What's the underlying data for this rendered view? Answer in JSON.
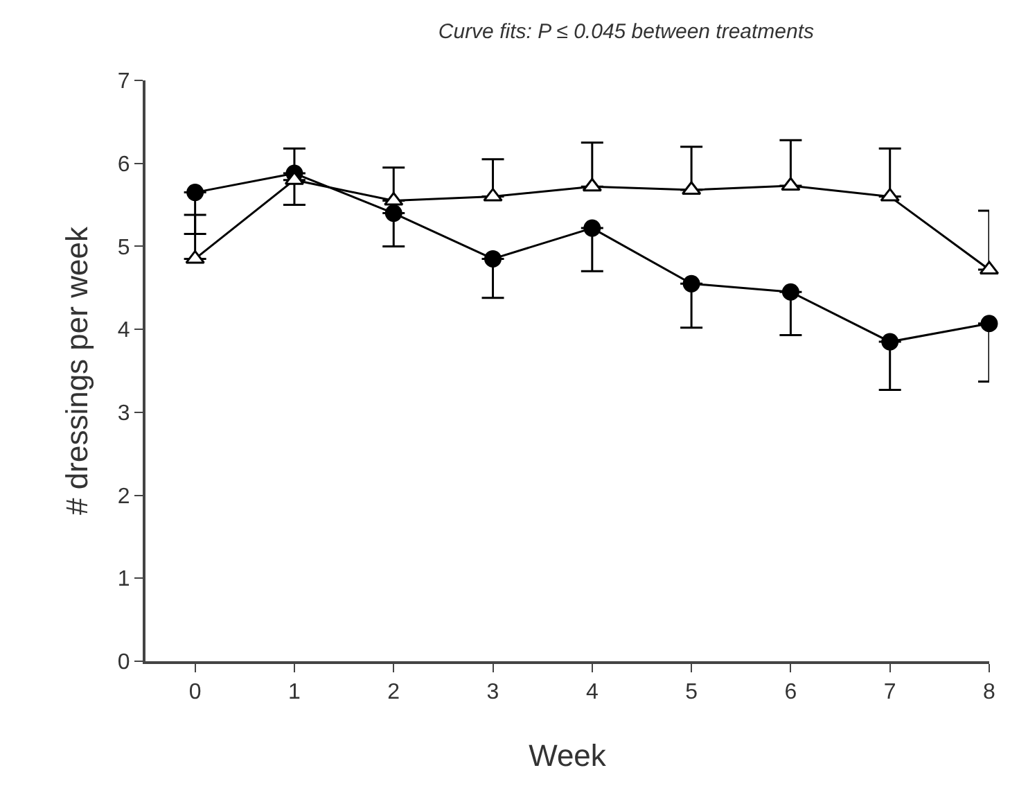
{
  "chart_data": {
    "type": "line",
    "title": "Curve fits: P ≤ 0.045 between treatments",
    "xlabel": "Week",
    "ylabel": "# dressings per week",
    "x": [
      0,
      1,
      2,
      3,
      4,
      5,
      6,
      7,
      8
    ],
    "series": [
      {
        "color": "#000000",
        "marker": "circle",
        "values": [
          5.65,
          5.88,
          5.4,
          4.85,
          5.22,
          4.55,
          4.45,
          3.85,
          4.07
        ],
        "errors": [
          [
            5.15,
            5.65
          ],
          [
            5.88,
            6.18
          ],
          [
            5.0,
            5.4
          ],
          [
            4.38,
            4.85
          ],
          [
            4.7,
            5.22
          ],
          [
            4.02,
            4.55
          ],
          [
            3.93,
            4.45
          ],
          [
            3.27,
            3.85
          ],
          [
            3.37,
            4.07
          ]
        ]
      },
      {
        "color": "#000000",
        "marker": "triangle",
        "values": [
          4.85,
          5.8,
          5.55,
          5.6,
          5.72,
          5.68,
          5.73,
          5.6,
          4.72
        ],
        "errors": [
          [
            4.85,
            5.38
          ],
          [
            5.5,
            5.8
          ],
          [
            5.55,
            5.95
          ],
          [
            5.6,
            6.05
          ],
          [
            5.72,
            6.25
          ],
          [
            5.68,
            6.2
          ],
          [
            5.73,
            6.28
          ],
          [
            5.6,
            6.18
          ],
          [
            4.72,
            5.43
          ]
        ]
      }
    ],
    "xlim": [
      -0.5,
      8
    ],
    "xticks": [
      0,
      1,
      2,
      3,
      4,
      5,
      6,
      7,
      8
    ],
    "ylim": [
      0,
      7
    ],
    "yticks": [
      0,
      1,
      2,
      3,
      4,
      5,
      6,
      7
    ],
    "line_style": "solid"
  }
}
